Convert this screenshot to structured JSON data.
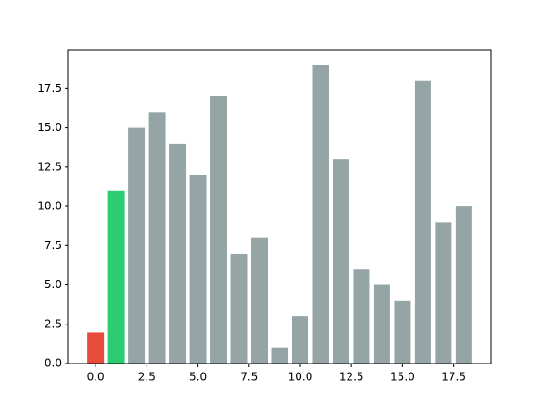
{
  "chart_data": {
    "type": "bar",
    "x": [
      0,
      1,
      2,
      3,
      4,
      5,
      6,
      7,
      8,
      9,
      10,
      11,
      12,
      13,
      14,
      15,
      16,
      17,
      18
    ],
    "values": [
      2,
      11,
      15,
      16,
      14,
      12,
      17,
      7,
      8,
      1,
      3,
      19,
      13,
      6,
      5,
      4,
      18,
      9,
      10
    ],
    "colors": [
      "#e74c3c",
      "#2ecc71",
      "#95a5a6",
      "#95a5a6",
      "#95a5a6",
      "#95a5a6",
      "#95a5a6",
      "#95a5a6",
      "#95a5a6",
      "#95a5a6",
      "#95a5a6",
      "#95a5a6",
      "#95a5a6",
      "#95a5a6",
      "#95a5a6",
      "#95a5a6",
      "#95a5a6",
      "#95a5a6",
      "#95a5a6"
    ],
    "xlim": [
      -1.34,
      19.34
    ],
    "xticks": [
      {
        "value": 0,
        "label": "0.0"
      },
      2.5,
      {
        "value": 5,
        "label": "5.0"
      },
      7.5,
      {
        "value": 10,
        "label": "10.0"
      },
      12.5,
      {
        "value": 15,
        "label": "15.0"
      },
      17.5
    ],
    "ylim": [
      0,
      19.95
    ],
    "yticks": [
      {
        "value": 0,
        "label": "0.0"
      },
      2.5,
      {
        "value": 5,
        "label": "5.0"
      },
      7.5,
      {
        "value": 10,
        "label": "10.0"
      },
      12.5,
      {
        "value": 15,
        "label": "15.0"
      },
      17.5
    ],
    "grid": false
  }
}
